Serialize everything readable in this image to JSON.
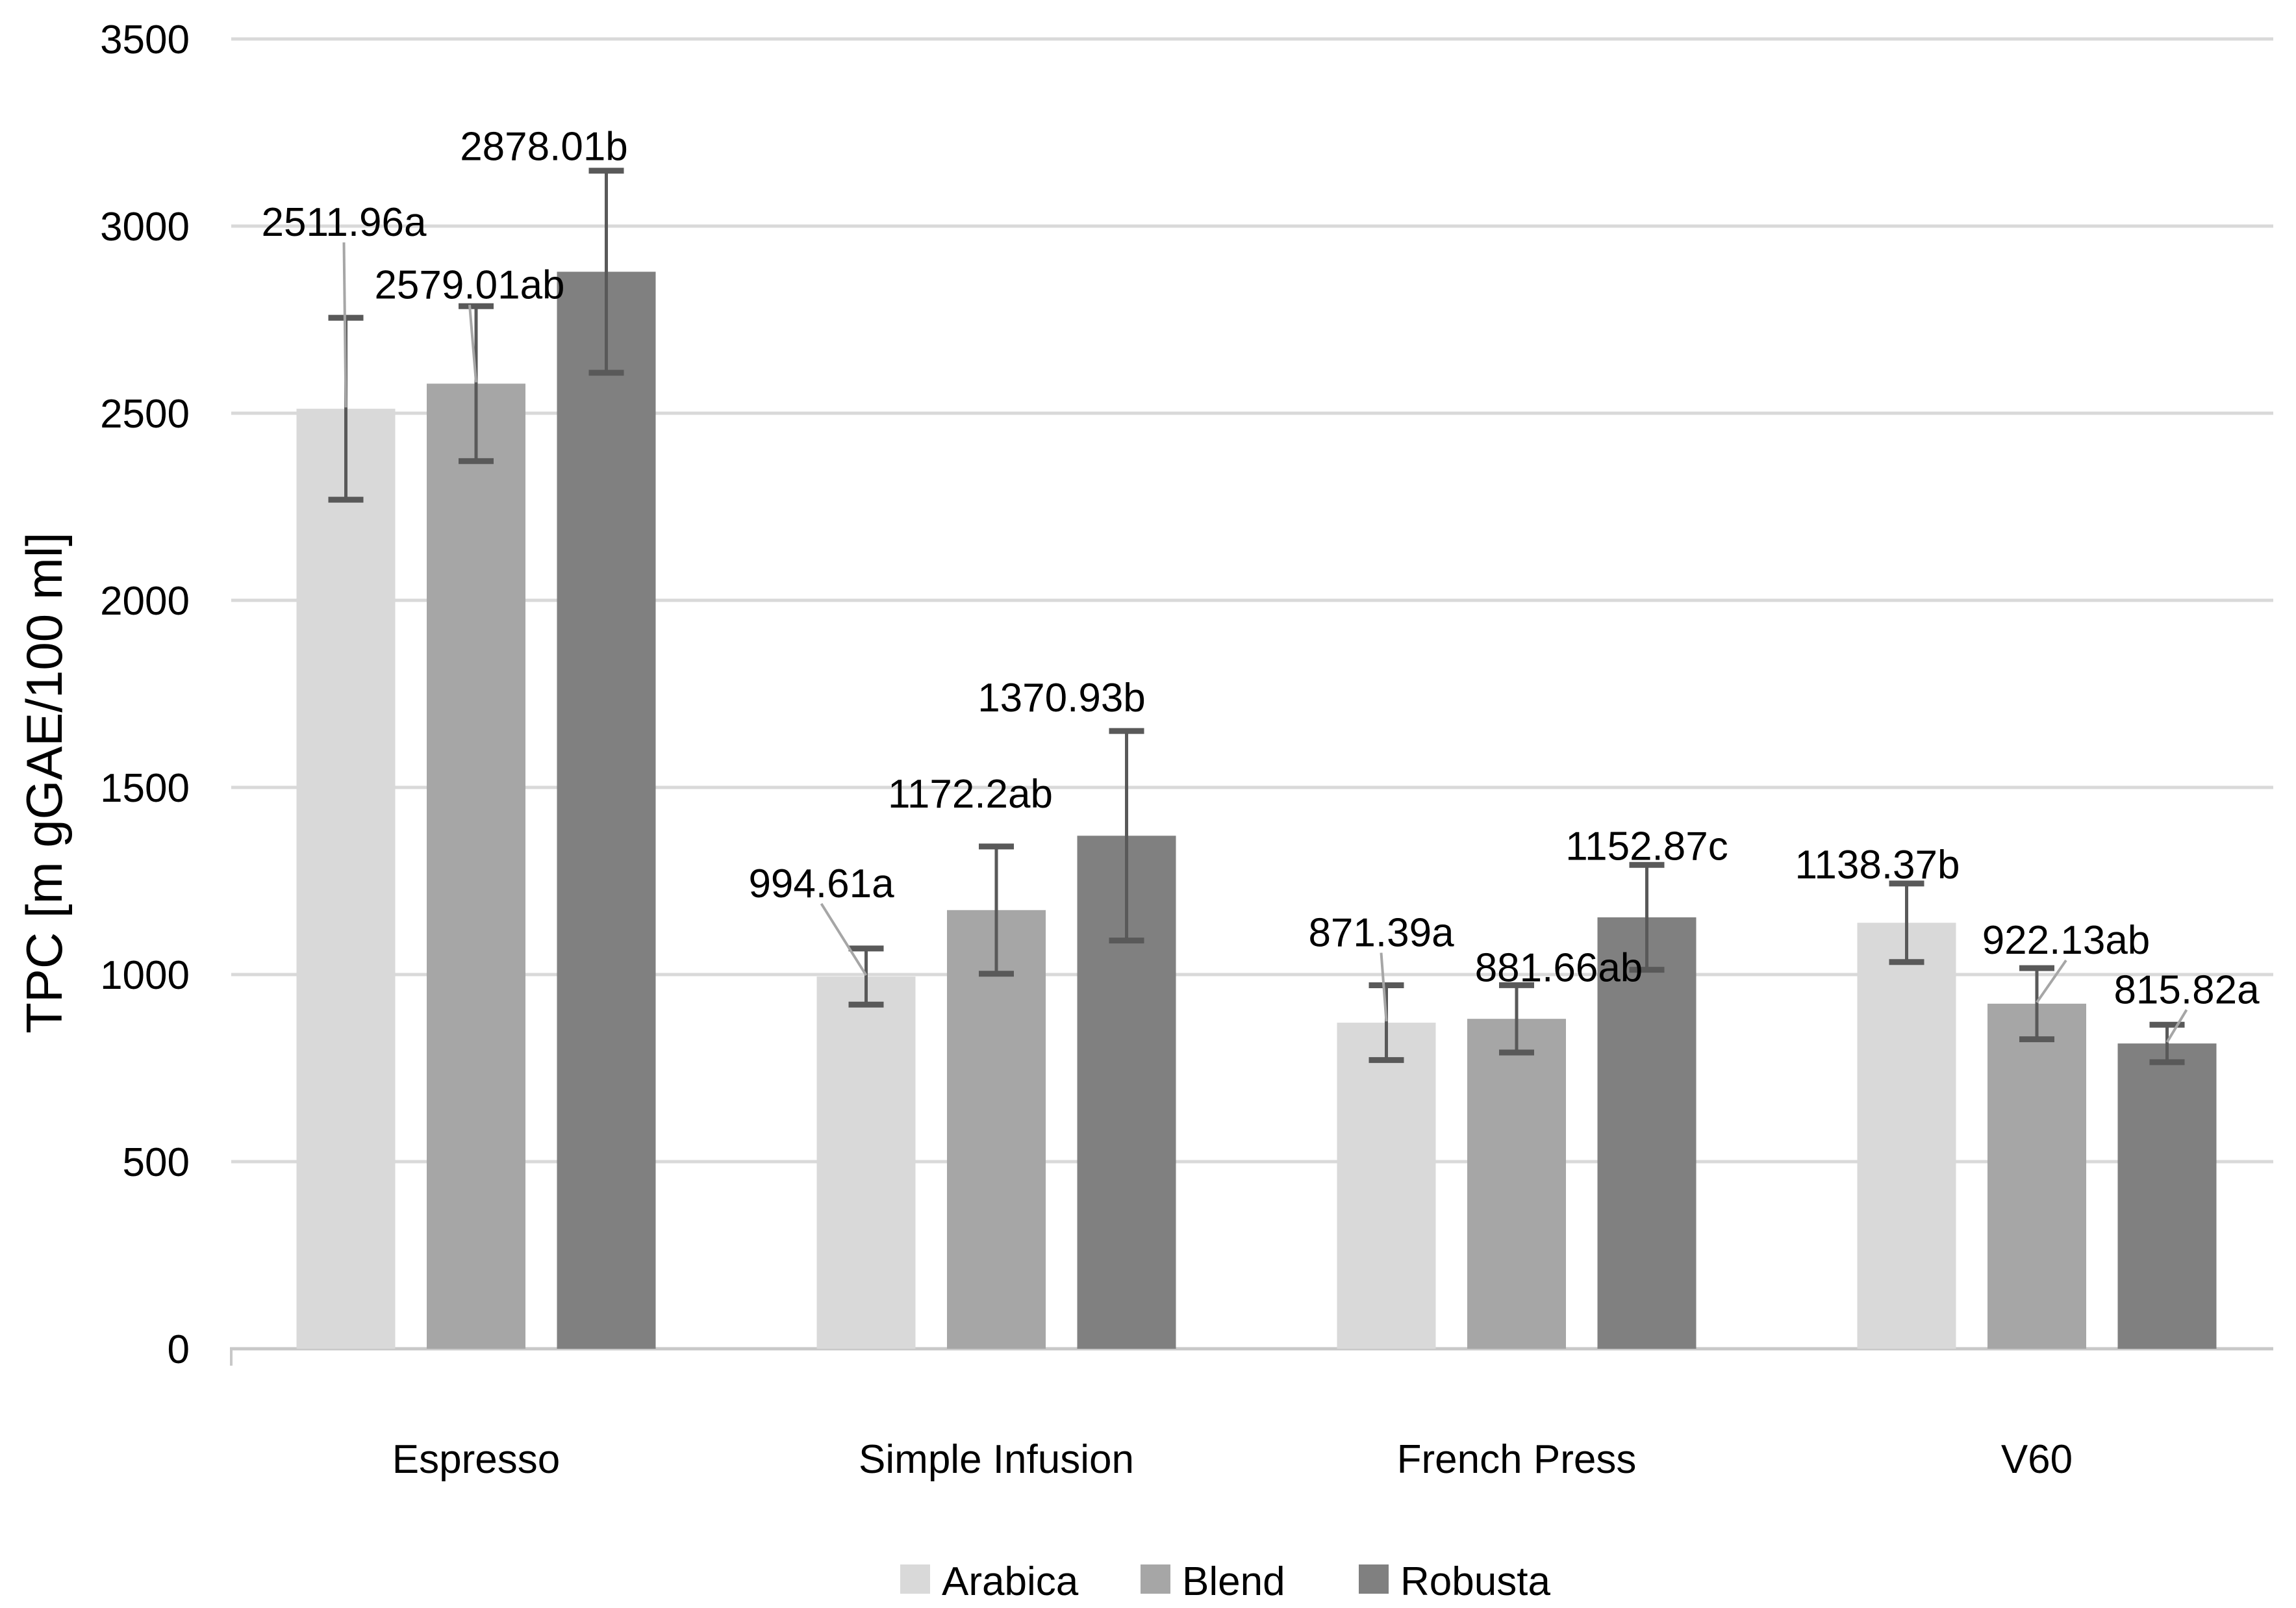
{
  "chart_data": {
    "type": "bar",
    "ylabel": "TPC [m gGAE/100 ml]",
    "ylim": [
      0,
      3500
    ],
    "ytick_step": 500,
    "yticks": [
      0,
      500,
      1000,
      1500,
      2000,
      2500,
      3000,
      3500
    ],
    "grid": "horizontal",
    "legend_position": "bottom",
    "categories": [
      "Espresso",
      "Simple Infusion",
      "French Press",
      "V60"
    ],
    "colors": {
      "gridline": "#d9d9d9",
      "axis_line": "#c8c8c8",
      "error_bar": "#595959",
      "leader_line": "#a6a6a6",
      "text": "#000000"
    },
    "series": [
      {
        "name": "Arabica",
        "color": "#d9d9d9",
        "points": [
          {
            "value": 2511.96,
            "label": "2511.96a",
            "err": 243,
            "dx": -3,
            "dy": 126,
            "leader": true
          },
          {
            "value": 994.61,
            "label": "994.61a",
            "err": 75,
            "dx": -69,
            "dy": 79,
            "leader": true
          },
          {
            "value": 871.39,
            "label": "871.39a",
            "err": 100,
            "dx": -8,
            "dy": 60,
            "leader": true
          },
          {
            "value": 1138.37,
            "label": "1138.37b",
            "err": 105,
            "dx": -45,
            "dy": 8,
            "leader": false
          }
        ]
      },
      {
        "name": "Blend",
        "color": "#a6a6a6",
        "points": [
          {
            "value": 2579.01,
            "label": "2579.01ab",
            "err": 207,
            "dx": -10,
            "dy": 12,
            "leader": true
          },
          {
            "value": 1172.2,
            "label": "1172.2ab",
            "err": 170,
            "dx": -40,
            "dy": 60,
            "leader": false
          },
          {
            "value": 881.66,
            "label": "881.66ab",
            "err": 90,
            "dx": 65,
            "dy": 6,
            "leader": false
          },
          {
            "value": 922.13,
            "label": "922.13ab",
            "err": 95,
            "dx": 45,
            "dy": 22,
            "leader": true
          }
        ]
      },
      {
        "name": "Robusta",
        "color": "#808080",
        "points": [
          {
            "value": 2878.01,
            "label": "2878.01b",
            "err": 270,
            "dx": -96,
            "dy": 16,
            "leader": false
          },
          {
            "value": 1370.93,
            "label": "1370.93b",
            "err": 280,
            "dx": -100,
            "dy": 30,
            "leader": false
          },
          {
            "value": 1152.87,
            "label": "1152.87c",
            "err": 140,
            "dx": 0,
            "dy": 8,
            "leader": false
          },
          {
            "value": 815.82,
            "label": "815.82a",
            "err": 50,
            "dx": 30,
            "dy": 33,
            "leader": true
          }
        ]
      }
    ]
  }
}
